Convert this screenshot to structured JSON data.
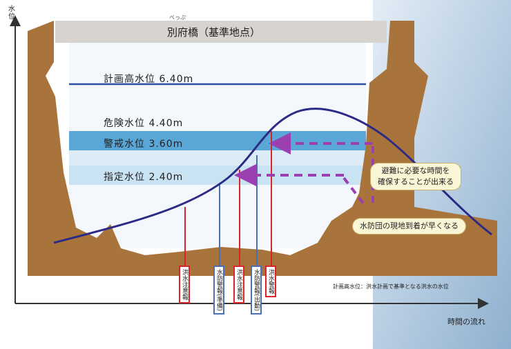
{
  "title": {
    "text": "別府橋（基準地点）",
    "ruby": "べっぷ"
  },
  "axes": {
    "y_label": "水位",
    "x_label": "時間の流れ"
  },
  "levels": [
    {
      "id": "plan",
      "label": "計画高水位",
      "value": "6.40m"
    },
    {
      "id": "danger",
      "label": "危険水位",
      "value": "4.40m"
    },
    {
      "id": "warning",
      "label": "警戒水位",
      "value": "3.60m"
    },
    {
      "id": "designated",
      "label": "指定水位",
      "value": "2.40m"
    }
  ],
  "callouts": [
    {
      "id": "evacuation-time",
      "lines": [
        "避難に必要な時間を",
        "確保することが出来る"
      ]
    },
    {
      "id": "flood-fighters",
      "lines": [
        "水防団の現地到着が早くなる"
      ]
    }
  ],
  "event_labels": [
    {
      "id": "flood-watch",
      "text": "洪水注意報",
      "color": "#d9252a"
    },
    {
      "id": "flood-fight-standby",
      "text": "水防警報(準備)",
      "color": "#4a6fb5"
    },
    {
      "id": "flood-warning-1",
      "text": "洪水注意報",
      "color": "#d9252a"
    },
    {
      "id": "flood-fight-dispatch",
      "text": "水防警報(出動)",
      "color": "#4a6fb5"
    },
    {
      "id": "flood-warning-2",
      "text": "洪水警報",
      "color": "#d9252a"
    }
  ],
  "footnote": "計画高水位：洪水計画で基準となる洪水の水位",
  "colors": {
    "ground": "#a9743c",
    "sky": "#b9cfe6",
    "warning_band": "#5aa6d6",
    "designated_band": "#c9e3f3",
    "plan_line": "#2e4fa3",
    "hydrograph": "#2b2a86",
    "dashed_arrow": "#9b3fb1",
    "title_band": "#d7d3cf"
  }
}
